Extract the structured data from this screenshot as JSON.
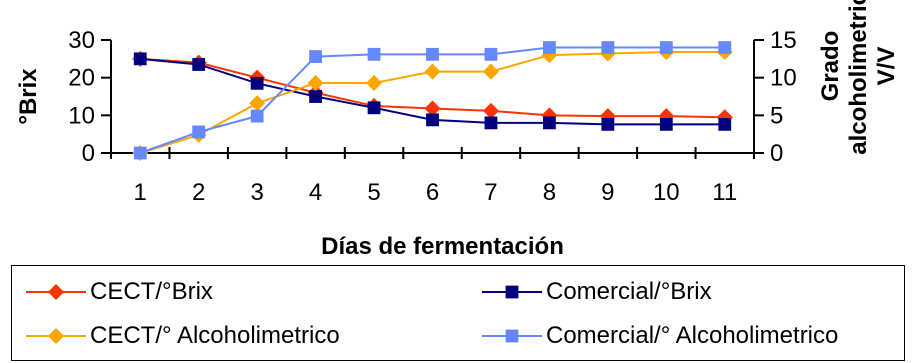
{
  "chart_data": {
    "type": "line",
    "categories": [
      "1",
      "2",
      "3",
      "4",
      "5",
      "6",
      "7",
      "8",
      "9",
      "10",
      "11"
    ],
    "xlabel": "Días de fermentación",
    "ylabel_left": "°Brix",
    "ylabel_right_lines": [
      "Grado",
      "alcoholimetrico",
      "V/V"
    ],
    "ylim_left": [
      0,
      30
    ],
    "ylim_right": [
      0,
      15
    ],
    "yticks_left": [
      "0",
      "10",
      "20",
      "30"
    ],
    "yticks_right": [
      "0",
      "5",
      "10",
      "15"
    ],
    "grid": false,
    "legend_position": "bottom",
    "series": [
      {
        "name": "CECT/°Brix",
        "axis": "left",
        "color": "#ff3300",
        "marker": "diamond",
        "values": [
          25,
          24,
          20,
          16,
          12.5,
          11.8,
          11.2,
          10,
          9.8,
          9.8,
          9.5
        ]
      },
      {
        "name": "Comercial/°Brix",
        "axis": "left",
        "color": "#000080",
        "marker": "square",
        "values": [
          25,
          23.5,
          18.5,
          15,
          12,
          8.8,
          8,
          8,
          7.6,
          7.6,
          7.6
        ]
      },
      {
        "name": "CECT/° Alcoholimetrico",
        "axis": "right",
        "color": "#ffa500",
        "marker": "diamond",
        "values": [
          0,
          2.4,
          6.6,
          9.3,
          9.3,
          10.8,
          10.8,
          13,
          13.2,
          13.4,
          13.4
        ]
      },
      {
        "name": "Comercial/° Alcoholimetrico",
        "axis": "right",
        "color": "#6688ff",
        "marker": "square",
        "values": [
          0,
          2.8,
          4.9,
          12.8,
          13.1,
          13.1,
          13.1,
          14,
          14,
          14,
          14
        ]
      }
    ]
  }
}
